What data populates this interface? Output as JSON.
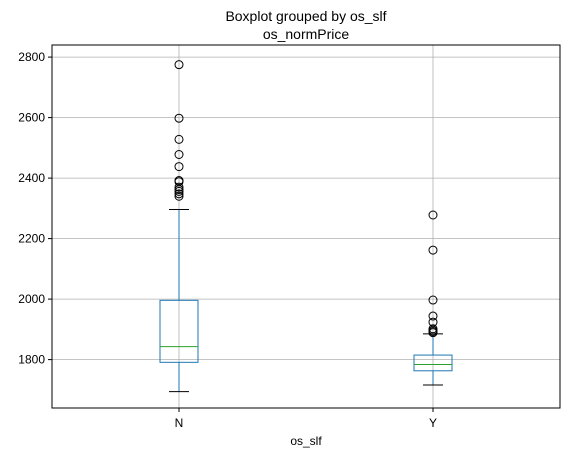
{
  "chart_data": {
    "type": "boxplot",
    "title": "Boxplot grouped by os_slf",
    "subtitle": "os_normPrice",
    "xlabel": "os_slf",
    "ylabel": "",
    "categories": [
      "N",
      "Y"
    ],
    "ylim": [
      1640,
      2840
    ],
    "yticks": [
      1800,
      2000,
      2200,
      2400,
      2600,
      2800
    ],
    "grid": true,
    "colors": {
      "box": "#1f77b4",
      "median": "#2ca02c",
      "whisker": "#1f77b4",
      "cap": "#000000",
      "flier": "#000000",
      "grid": "#b0b0b0",
      "axis": "#000000"
    },
    "groups": [
      {
        "name": "N",
        "whisker_low": 1694,
        "q1": 1791,
        "median": 1843,
        "q3": 1996,
        "whisker_high": 2296,
        "fliers": [
          2340,
          2348,
          2356,
          2362,
          2370,
          2388,
          2392,
          2438,
          2478,
          2528,
          2598,
          2775
        ]
      },
      {
        "name": "Y",
        "whisker_low": 1716,
        "q1": 1763,
        "median": 1784,
        "q3": 1815,
        "whisker_high": 1885,
        "fliers": [
          1889,
          1893,
          1897,
          1902,
          1924,
          1944,
          1997,
          2162,
          2278
        ]
      }
    ]
  }
}
